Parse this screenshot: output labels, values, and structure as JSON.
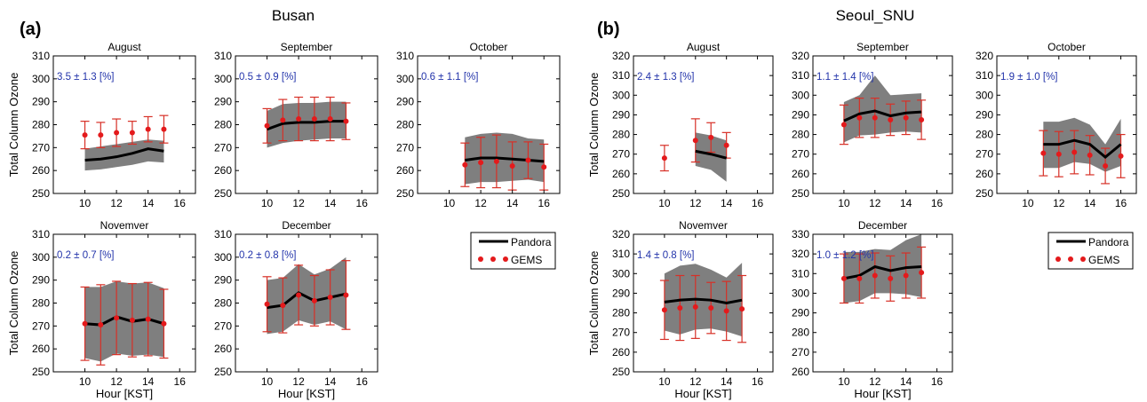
{
  "figure": {
    "groups": [
      {
        "label": "(a)",
        "site": "Busan"
      },
      {
        "label": "(b)",
        "site": "Seoul_SNU"
      }
    ]
  },
  "chart_data": [
    {
      "type": "line",
      "group": "Busan",
      "title": "August",
      "annotation": "3.5 ± 1.3 [%]",
      "xlim": [
        8,
        17
      ],
      "ylim": [
        250,
        310
      ],
      "xticks": [
        10,
        12,
        14,
        16
      ],
      "yticks": [
        250,
        260,
        270,
        280,
        290,
        300,
        310
      ],
      "ylabel": "Total Column Ozone",
      "xlabel": "",
      "pandora": {
        "x": [
          10,
          11,
          12,
          13,
          14,
          15
        ],
        "y": [
          264.5,
          265,
          266,
          267.5,
          269.5,
          268.5
        ],
        "lo": [
          260,
          260.5,
          261.5,
          262.5,
          264,
          263.5
        ],
        "hi": [
          269.5,
          270.5,
          271.5,
          272.5,
          273.5,
          273
        ]
      },
      "gems": {
        "x": [
          10,
          11,
          12,
          13,
          14,
          15
        ],
        "y": [
          275.5,
          275.5,
          276.5,
          276.5,
          278,
          278
        ],
        "err": [
          6,
          5.5,
          6,
          5,
          5.5,
          6
        ]
      }
    },
    {
      "type": "line",
      "group": "Busan",
      "title": "September",
      "annotation": "0.5 ± 0.9 [%]",
      "xlim": [
        8,
        17
      ],
      "ylim": [
        250,
        310
      ],
      "xticks": [
        10,
        12,
        14,
        16
      ],
      "yticks": [
        250,
        260,
        270,
        280,
        290,
        300,
        310
      ],
      "ylabel": "",
      "xlabel": "",
      "pandora": {
        "x": [
          10,
          11,
          12,
          13,
          14,
          15
        ],
        "y": [
          278,
          280.5,
          281,
          281,
          281.5,
          281.5
        ],
        "lo": [
          270,
          272,
          273,
          273.5,
          274,
          274
        ],
        "hi": [
          286,
          289,
          289.5,
          289.5,
          290,
          290
        ]
      },
      "gems": {
        "x": [
          10,
          11,
          12,
          13,
          14,
          15
        ],
        "y": [
          279.5,
          282,
          282.5,
          282.5,
          282.5,
          281.5
        ],
        "err": [
          7.5,
          9,
          9.5,
          9.5,
          9.5,
          8
        ]
      }
    },
    {
      "type": "line",
      "group": "Busan",
      "title": "October",
      "annotation": "0.6 ± 1.1 [%]",
      "xlim": [
        8,
        17
      ],
      "ylim": [
        250,
        310
      ],
      "xticks": [
        10,
        12,
        14,
        16
      ],
      "yticks": [
        250,
        260,
        270,
        280,
        290,
        300,
        310
      ],
      "ylabel": "",
      "xlabel": "",
      "pandora": {
        "x": [
          11,
          12,
          13,
          14,
          15,
          16
        ],
        "y": [
          264.5,
          265.5,
          265.5,
          265,
          264.5,
          264
        ],
        "lo": [
          254,
          255,
          255,
          255.5,
          256,
          255
        ],
        "hi": [
          274.5,
          276,
          276.5,
          276,
          274,
          273.5
        ]
      },
      "gems": {
        "x": [
          11,
          12,
          13,
          14,
          15,
          16
        ],
        "y": [
          262.5,
          263.5,
          264,
          262,
          264.5,
          261.5
        ],
        "err": [
          9.5,
          11,
          11.5,
          10.5,
          8,
          10
        ]
      }
    },
    {
      "type": "line",
      "group": "Busan",
      "title": "Novemver",
      "annotation": "0.2 ± 0.7 [%]",
      "xlim": [
        8,
        17
      ],
      "ylim": [
        250,
        310
      ],
      "xticks": [
        10,
        12,
        14,
        16
      ],
      "yticks": [
        250,
        260,
        270,
        280,
        290,
        300,
        310
      ],
      "ylabel": "Total Column Ozone",
      "xlabel": "Hour [KST]",
      "pandora": {
        "x": [
          10,
          11,
          12,
          13,
          14,
          15
        ],
        "y": [
          271,
          270.5,
          274,
          272,
          273,
          271
        ],
        "lo": [
          256,
          254.5,
          258,
          257,
          257.5,
          256.5
        ],
        "hi": [
          287,
          287,
          289.5,
          288.5,
          289,
          286.5
        ]
      },
      "gems": {
        "x": [
          10,
          11,
          12,
          13,
          14,
          15
        ],
        "y": [
          271,
          270.5,
          273.5,
          272.5,
          273,
          271
        ],
        "err": [
          16,
          17.5,
          16,
          16,
          16,
          15
        ]
      }
    },
    {
      "type": "line",
      "group": "Busan",
      "title": "December",
      "annotation": "0.2 ± 0.8 [%]",
      "xlim": [
        8,
        17
      ],
      "ylim": [
        250,
        310
      ],
      "xticks": [
        10,
        12,
        14,
        16
      ],
      "yticks": [
        250,
        260,
        270,
        280,
        290,
        300,
        310
      ],
      "ylabel": "",
      "xlabel": "Hour [KST]",
      "pandora": {
        "x": [
          10,
          11,
          12,
          13,
          14,
          15
        ],
        "y": [
          278,
          279,
          284.5,
          281,
          282.5,
          284
        ],
        "lo": [
          266.5,
          267.5,
          272.5,
          270.5,
          272,
          268.5
        ],
        "hi": [
          290,
          291,
          297,
          292.5,
          295,
          300
        ]
      },
      "gems": {
        "x": [
          10,
          11,
          12,
          13,
          14,
          15
        ],
        "y": [
          279.5,
          279,
          283.5,
          281,
          282.5,
          283.5
        ],
        "err": [
          12,
          12,
          13,
          11,
          12,
          15
        ]
      }
    },
    {
      "type": "line",
      "group": "Seoul_SNU",
      "title": "August",
      "annotation": "2.4 ± 1.3 [%]",
      "xlim": [
        8,
        17
      ],
      "ylim": [
        250,
        320
      ],
      "xticks": [
        10,
        12,
        14,
        16
      ],
      "yticks": [
        250,
        260,
        270,
        280,
        290,
        300,
        310,
        320
      ],
      "ylabel": "Total Column Ozone",
      "xlabel": "",
      "pandora": {
        "x": [
          12,
          13,
          14
        ],
        "y": [
          271.5,
          270,
          268
        ],
        "lo": [
          264,
          262,
          256
        ],
        "hi": [
          281,
          279.5,
          277
        ]
      },
      "gems": {
        "x": [
          10,
          12,
          13,
          14
        ],
        "y": [
          268,
          277,
          278.5,
          274.5
        ],
        "err": [
          6.5,
          11,
          7.5,
          6.5
        ]
      }
    },
    {
      "type": "line",
      "group": "Seoul_SNU",
      "title": "September",
      "annotation": "1.1 ± 1.4 [%]",
      "xlim": [
        8,
        17
      ],
      "ylim": [
        250,
        320
      ],
      "xticks": [
        10,
        12,
        14,
        16
      ],
      "yticks": [
        250,
        260,
        270,
        280,
        290,
        300,
        310,
        320
      ],
      "ylabel": "",
      "xlabel": "",
      "pandora": {
        "x": [
          10,
          11,
          12,
          13,
          14,
          15
        ],
        "y": [
          287,
          290.5,
          292,
          289.5,
          291,
          291.5
        ],
        "lo": [
          276,
          279.5,
          280,
          281,
          281.5,
          281
        ],
        "hi": [
          296.5,
          300,
          310,
          300,
          300.5,
          301
        ]
      },
      "gems": {
        "x": [
          10,
          11,
          12,
          13,
          14,
          15
        ],
        "y": [
          285,
          288.5,
          288.5,
          287.5,
          288.5,
          287.5
        ],
        "err": [
          10,
          10,
          10,
          8,
          8.5,
          10
        ]
      }
    },
    {
      "type": "line",
      "group": "Seoul_SNU",
      "title": "October",
      "annotation": "1.9 ± 1.0 [%]",
      "xlim": [
        8,
        17
      ],
      "ylim": [
        250,
        320
      ],
      "xticks": [
        10,
        12,
        14,
        16
      ],
      "yticks": [
        250,
        260,
        270,
        280,
        290,
        300,
        310,
        320
      ],
      "ylabel": "",
      "xlabel": "",
      "pandora": {
        "x": [
          11,
          12,
          13,
          14,
          15,
          16
        ],
        "y": [
          275,
          275,
          277,
          275,
          268.5,
          275
        ],
        "lo": [
          263,
          263,
          266,
          265,
          261,
          264
        ],
        "hi": [
          286.5,
          286.5,
          288.5,
          285,
          275,
          288
        ]
      },
      "gems": {
        "x": [
          11,
          12,
          13,
          14,
          15,
          16
        ],
        "y": [
          270.5,
          270,
          271,
          269.5,
          264,
          269
        ],
        "err": [
          11.5,
          11.5,
          11,
          10,
          9,
          11
        ]
      }
    },
    {
      "type": "line",
      "group": "Seoul_SNU",
      "title": "Novemver",
      "annotation": "1.4 ± 0.8 [%]",
      "xlim": [
        8,
        17
      ],
      "ylim": [
        250,
        320
      ],
      "xticks": [
        10,
        12,
        14,
        16
      ],
      "yticks": [
        250,
        260,
        270,
        280,
        290,
        300,
        310,
        320
      ],
      "ylabel": "Total Column Ozone",
      "xlabel": "Hour [KST]",
      "pandora": {
        "x": [
          10,
          11,
          12,
          13,
          14,
          15
        ],
        "y": [
          285.5,
          286.5,
          287,
          286.5,
          285,
          286.5
        ],
        "lo": [
          271,
          269,
          271.5,
          272,
          270.5,
          268
        ],
        "hi": [
          300,
          304,
          305,
          302,
          298,
          305.5
        ]
      },
      "gems": {
        "x": [
          10,
          11,
          12,
          13,
          14,
          15
        ],
        "y": [
          281.5,
          282.5,
          283,
          282.5,
          281,
          282
        ],
        "err": [
          15,
          16.5,
          16,
          13,
          15,
          17
        ]
      }
    },
    {
      "type": "line",
      "group": "Seoul_SNU",
      "title": "December",
      "annotation": "1.0 ± 1.2 [%]",
      "xlim": [
        8,
        17
      ],
      "ylim": [
        260,
        330
      ],
      "xticks": [
        10,
        12,
        14,
        16
      ],
      "yticks": [
        260,
        270,
        280,
        290,
        300,
        310,
        320,
        330
      ],
      "ylabel": "",
      "xlabel": "Hour [KST]",
      "pandora": {
        "x": [
          10,
          11,
          12,
          13,
          14,
          15
        ],
        "y": [
          307.5,
          309,
          313.5,
          311.5,
          313,
          313.5
        ],
        "lo": [
          295,
          296,
          300,
          300,
          299.5,
          298
        ],
        "hi": [
          321,
          321,
          322.5,
          322,
          327,
          330
        ]
      },
      "gems": {
        "x": [
          10,
          11,
          12,
          13,
          14,
          15
        ],
        "y": [
          307.5,
          307.5,
          309,
          307.5,
          309,
          310.5
        ],
        "err": [
          12.5,
          12.5,
          11.5,
          11.5,
          11.5,
          13
        ]
      }
    }
  ],
  "legend": {
    "items": [
      {
        "name": "Pandora",
        "color": "#000000"
      },
      {
        "name": "GEMS",
        "color": "#e41a1c"
      }
    ]
  },
  "colors": {
    "band": "#7f7f7f",
    "pandora_line": "#000000",
    "gems_marker": "#e41a1c",
    "gems_err": "#d73027",
    "annotation": "#2233aa"
  }
}
